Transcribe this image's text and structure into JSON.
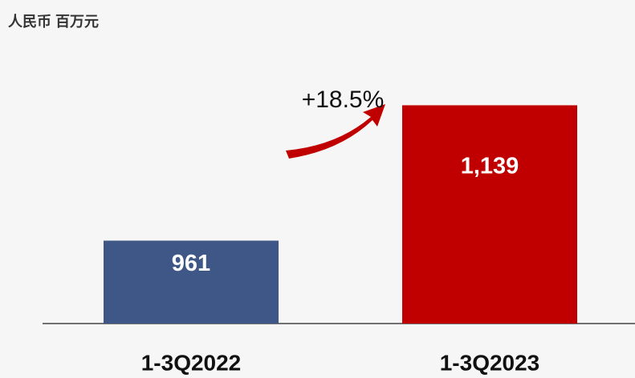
{
  "chart_data": {
    "type": "bar",
    "title": "人民币 百万元",
    "categories": [
      "1-3Q2022",
      "1-3Q2023"
    ],
    "values": [
      961,
      1139
    ],
    "value_labels": [
      "961",
      "1,139"
    ],
    "colors": [
      "#3f5786",
      "#c00000"
    ],
    "ylim": [
      852,
      1150
    ],
    "annotation": "+18.5%"
  }
}
